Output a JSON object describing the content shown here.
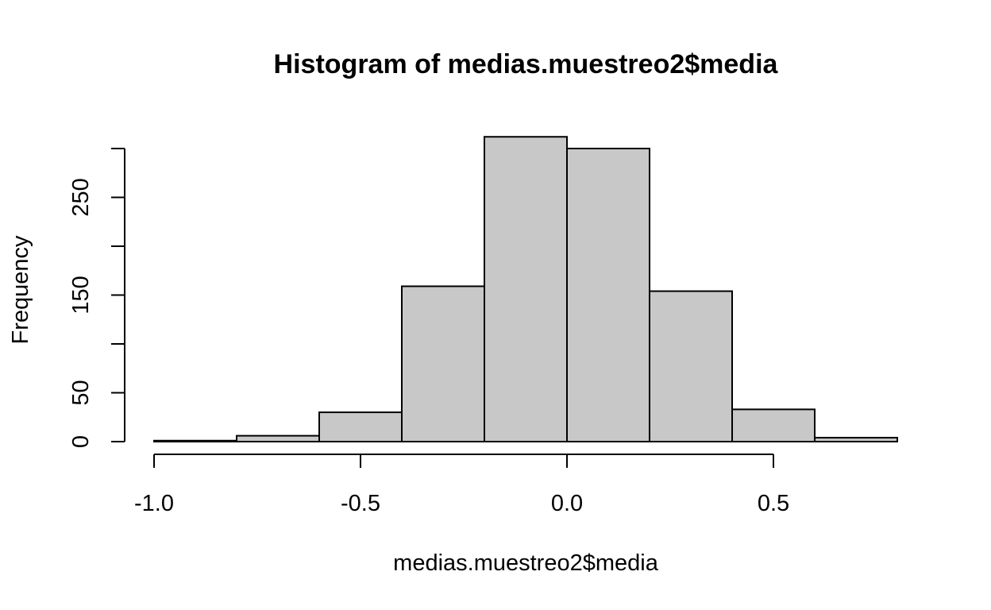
{
  "chart_data": {
    "type": "bar",
    "title": "Histogram of medias.muestreo2$media",
    "xlabel": "medias.muestreo2$media",
    "ylabel": "Frequency",
    "bins": [
      {
        "x0": -1.0,
        "x1": -0.8,
        "count": 1
      },
      {
        "x0": -0.8,
        "x1": -0.6,
        "count": 6
      },
      {
        "x0": -0.6,
        "x1": -0.4,
        "count": 30
      },
      {
        "x0": -0.4,
        "x1": -0.2,
        "count": 159
      },
      {
        "x0": -0.2,
        "x1": 0.0,
        "count": 312
      },
      {
        "x0": 0.0,
        "x1": 0.2,
        "count": 300
      },
      {
        "x0": 0.2,
        "x1": 0.4,
        "count": 154
      },
      {
        "x0": 0.4,
        "x1": 0.6,
        "count": 33
      },
      {
        "x0": 0.6,
        "x1": 0.8,
        "count": 4
      }
    ],
    "x_ticks": [
      -1.0,
      -0.5,
      0.0,
      0.5
    ],
    "x_tick_labels": [
      "-1.0",
      "-0.5",
      "0.0",
      "0.5"
    ],
    "y_ticks": [
      0,
      50,
      100,
      150,
      200,
      250,
      300
    ],
    "y_tick_labels": [
      "0",
      "50",
      "",
      "150",
      "",
      "250",
      ""
    ],
    "xlim": [
      -1.0,
      0.8
    ],
    "ylim": [
      0,
      300
    ],
    "grid": false,
    "bar_color": "#c8c8c8",
    "border_color": "#000000"
  }
}
